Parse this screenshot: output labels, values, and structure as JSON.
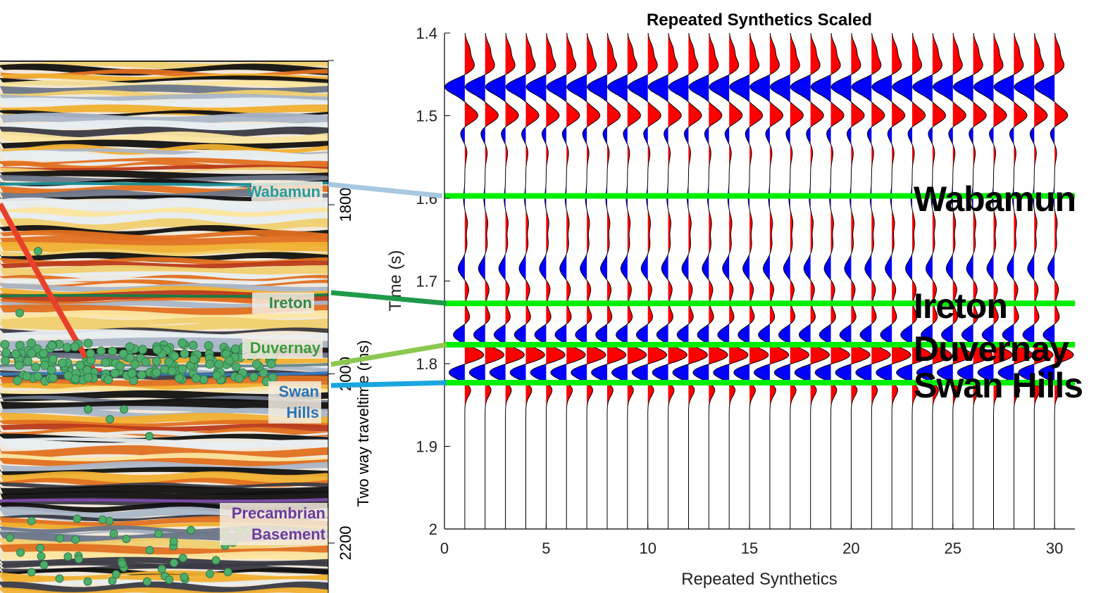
{
  "left_panel": {
    "ylabel": "Two way traveltime (ms)",
    "yticks": [
      1800,
      2000,
      2200
    ],
    "horizons": [
      {
        "name": "Wabamun",
        "color": "#2a9a9c",
        "line_color": "#1f8d93",
        "t_ms": 1753
      },
      {
        "name": "Ireton",
        "color": "#2e8a4a",
        "line_color": "#1e7a44",
        "t_ms": 1880
      },
      {
        "name": "Duvernay",
        "color": "#3d9a3a",
        "line_color": "#6f8a8a",
        "t_ms": 1963
      },
      {
        "name_lines": [
          "Swan",
          "Hills"
        ],
        "color": "#2a74b5",
        "line_color": "#3a78b8",
        "t_ms": 1975
      },
      {
        "name_lines": [
          "Precambrian",
          "Basement"
        ],
        "color": "#6b3a9c",
        "line_color": "#7a4aa8",
        "t_ms": 2155
      }
    ]
  },
  "chart_data": {
    "type": "wiggle",
    "title": "Repeated Synthetics Scaled",
    "xlabel": "Repeated Synthetics",
    "ylabel": "Time (s)",
    "xlim": [
      0,
      31
    ],
    "ylim": [
      1.4,
      2.0
    ],
    "y_reversed": true,
    "xticks": [
      0,
      5,
      10,
      15,
      20,
      25,
      30
    ],
    "yticks": [
      1.4,
      1.5,
      1.6,
      1.7,
      1.8,
      1.9,
      2.0
    ],
    "ytick_labels": [
      "1.4",
      "1.5",
      "1.6",
      "1.7",
      "1.8",
      "1.9",
      "2"
    ],
    "trace_positions": [
      1,
      2,
      3,
      4,
      5,
      6,
      7,
      8,
      9,
      10,
      11,
      12,
      13,
      14,
      15,
      16,
      17,
      18,
      19,
      20,
      21,
      22,
      23,
      24,
      25,
      26,
      27,
      28,
      29,
      30
    ],
    "positive_fill": "#ff0000",
    "negative_fill": "#0000ff",
    "wavelet": [
      {
        "t": 1.42,
        "a": 0.18
      },
      {
        "t": 1.44,
        "a": 0.35
      },
      {
        "t": 1.465,
        "a": -0.75
      },
      {
        "t": 1.5,
        "a": 0.5
      },
      {
        "t": 1.52,
        "a": -0.18
      },
      {
        "t": 1.545,
        "a": 0.08
      },
      {
        "t": 1.6,
        "a": -0.05
      },
      {
        "t": 1.63,
        "a": 0.1
      },
      {
        "t": 1.655,
        "a": 0.08
      },
      {
        "t": 1.685,
        "a": -0.25
      },
      {
        "t": 1.71,
        "a": 0.15
      },
      {
        "t": 1.745,
        "a": 0.2
      },
      {
        "t": 1.765,
        "a": -0.45
      },
      {
        "t": 1.79,
        "a": 0.75
      },
      {
        "t": 1.81,
        "a": -0.65
      },
      {
        "t": 1.83,
        "a": 0.25
      }
    ],
    "formation_lines": [
      {
        "label": "Wabamun",
        "t": 1.597
      },
      {
        "label": "Ireton",
        "t": 1.727
      },
      {
        "label": "Duvernay",
        "t": 1.777
      },
      {
        "label": "Swan Hills",
        "t": 1.823
      }
    ],
    "formation_line_color": "#00ee00"
  },
  "connectors": [
    {
      "from": "Wabamun",
      "to": "Wabamun",
      "color": "#a8c8e0"
    },
    {
      "from": "Ireton",
      "to": "Ireton",
      "color": "#1e9a4a"
    },
    {
      "from": "Duvernay",
      "to": "Duvernay",
      "color": "#8cc850"
    },
    {
      "from": "Swan Hills",
      "to": "Swan Hills",
      "color": "#1aa6e0"
    }
  ]
}
